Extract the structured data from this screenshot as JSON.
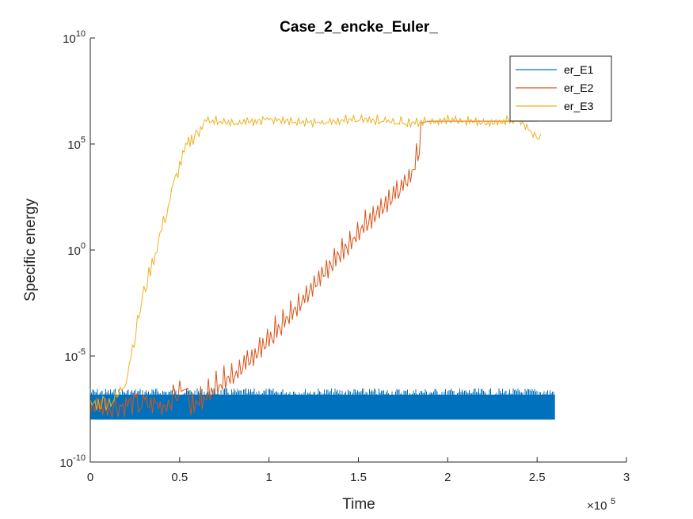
{
  "chart_data": {
    "type": "line",
    "title": "Case_2_encke_Euler_",
    "xlabel": "Time",
    "ylabel": "Specific energy",
    "x_exponent_label": "×10",
    "x_exponent": "5",
    "xlim": [
      0,
      300000
    ],
    "ylim": [
      1e-10,
      10000000000.0
    ],
    "yscale": "log",
    "x_ticks": [
      0,
      50000,
      100000,
      150000,
      200000,
      250000,
      300000
    ],
    "x_tick_labels": [
      "0",
      "0.5",
      "1",
      "1.5",
      "2",
      "2.5",
      "3"
    ],
    "y_ticks": [
      1e-10,
      1e-05,
      1,
      100000.0,
      10000000000.0
    ],
    "y_tick_labels": [
      {
        "base": "10",
        "exp": "-10"
      },
      {
        "base": "10",
        "exp": "-5"
      },
      {
        "base": "10",
        "exp": "0"
      },
      {
        "base": "10",
        "exp": "5"
      },
      {
        "base": "10",
        "exp": "10"
      }
    ],
    "grid": false,
    "legend_position": "top-right",
    "series": [
      {
        "name": "er_E1",
        "color": "#0072BD",
        "style": "dense noisy band",
        "x": [
          0,
          260000
        ],
        "y_band_low": [
          1e-08,
          1e-08
        ],
        "y_band_high": [
          3e-07,
          3e-07
        ]
      },
      {
        "name": "er_E2",
        "color": "#D95319",
        "x": [
          0,
          20000,
          40000,
          50000,
          60000,
          80000,
          100000,
          120000,
          140000,
          160000,
          175000,
          180000,
          185000,
          190000,
          200000,
          220000,
          240000,
          250000
        ],
        "y": [
          5e-08,
          5e-08,
          5e-08,
          2e-07,
          5e-07,
          1e-05,
          0.0005,
          0.05,
          5,
          500,
          10000,
          30000,
          1000000,
          1200000,
          1200000,
          1200000,
          1200000,
          1200000
        ]
      },
      {
        "name": "er_E3",
        "color": "#EDB120",
        "x": [
          0,
          15000,
          20000,
          30000,
          40000,
          50000,
          55000,
          60000,
          65000,
          80000,
          100000,
          120000,
          150000,
          180000,
          200000,
          220000,
          240000,
          252000
        ],
        "y": [
          5e-08,
          1e-07,
          1e-06,
          0.01,
          10,
          10000,
          100000,
          500000,
          3000000,
          2000000,
          3000000,
          2000000,
          3000000,
          2000000,
          3000000,
          2000000,
          3000000,
          300000
        ]
      }
    ]
  }
}
